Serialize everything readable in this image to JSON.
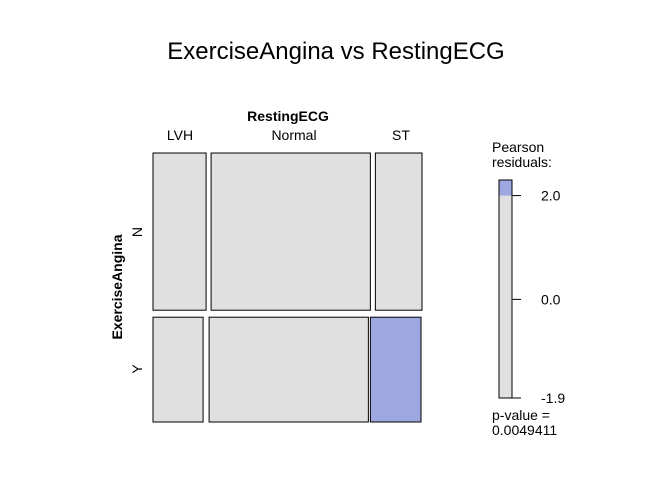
{
  "chart_data": {
    "type": "mosaic",
    "title": "ExerciseAngina vs RestingECG",
    "x_variable": "RestingECG",
    "y_variable": "ExerciseAngina",
    "x_levels": [
      "LVH",
      "Normal",
      "ST"
    ],
    "y_levels": [
      "N",
      "Y"
    ],
    "column_proportions": [
      0.205,
      0.615,
      0.18
    ],
    "row_proportions_by_column": {
      "LVH": {
        "N": 0.6,
        "Y": 0.4
      },
      "Normal": {
        "N": 0.6,
        "Y": 0.4
      },
      "ST": {
        "N": 0.6,
        "Y": 0.4
      }
    },
    "cell_shading": {
      "LVH": {
        "N": "#e0e0e0",
        "Y": "#e0e0e0"
      },
      "Normal": {
        "N": "#e0e0e0",
        "Y": "#e0e0e0"
      },
      "ST": {
        "N": "#e0e0e0",
        "Y": "#9ea8e0"
      }
    },
    "legend": {
      "title_line1": "Pearson",
      "title_line2": "residuals:",
      "ticks": [
        "2.0",
        "0.0",
        "-1.9"
      ],
      "tick_values": [
        2.0,
        0.0,
        -1.9
      ],
      "min": -1.9,
      "max": 2.3,
      "shaded_above": 2.0,
      "pvalue_line1": "p-value =",
      "pvalue_line2": "0.0049411"
    },
    "colors": {
      "neutral": "#e0e0e0",
      "positive_residual": "#9ea8e0",
      "border": "#000000"
    }
  }
}
